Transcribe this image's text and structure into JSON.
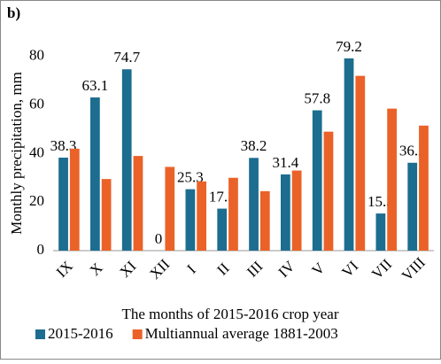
{
  "chart_data": {
    "type": "bar",
    "panel_label": "b)",
    "y_label": "Monthly precipitation, mm",
    "x_label": "The months of 2015-2016 crop year",
    "categories": [
      "IX",
      "X",
      "XI",
      "XII",
      "I",
      "II",
      "III",
      "IV",
      "V",
      "VI",
      "VII",
      "VIII"
    ],
    "series": [
      {
        "name": "2015-2016",
        "color": "#1c6d8f",
        "values": [
          38.3,
          63.1,
          74.7,
          0,
          25.3,
          17.3,
          38.2,
          31.4,
          57.8,
          79.2,
          15.3,
          36.2
        ]
      },
      {
        "name": "Multiannual average 1881-2003",
        "color": "#ea6228",
        "values": [
          42,
          29.5,
          39,
          34.5,
          28.5,
          30,
          24.5,
          33,
          49,
          72,
          58.5,
          51.5
        ]
      }
    ],
    "ylim": [
      0,
      85
    ],
    "yticks": [
      0,
      20,
      40,
      60,
      80
    ],
    "grid": false
  }
}
